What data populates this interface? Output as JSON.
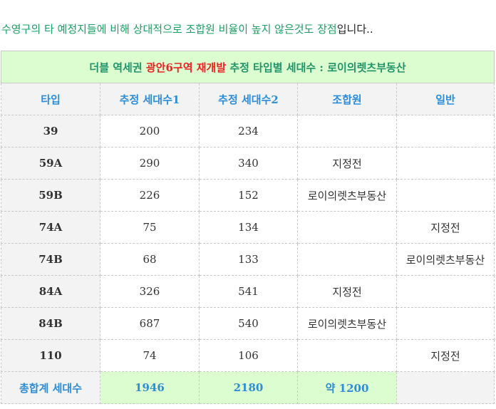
{
  "intro": {
    "green_text": "수영구의 타 예정지들에 비해 상대적으로 조합원 비율이 높지 않은것도 장점",
    "plain_text": "입니다.."
  },
  "table": {
    "title": {
      "part1": "더블 역세권 ",
      "part2": "광안6구역 재개발",
      "part3": "  추정 타입별 세대수 : 로이의렛츠부동산"
    },
    "headers": [
      "타입",
      "추정 세대수1",
      "추정 세대수2",
      "조합원",
      "일반"
    ],
    "rows": [
      {
        "type": "39",
        "v1": "200",
        "v2": "234",
        "member": "",
        "general": ""
      },
      {
        "type": "59A",
        "v1": "290",
        "v2": "340",
        "member": "지정전",
        "general": ""
      },
      {
        "type": "59B",
        "v1": "226",
        "v2": "152",
        "member": "로이의렛츠부동산",
        "general": ""
      },
      {
        "type": "74A",
        "v1": "75",
        "v2": "134",
        "member": "",
        "general": "지정전"
      },
      {
        "type": "74B",
        "v1": "68",
        "v2": "133",
        "member": "",
        "general": "로이의렛츠부동산"
      },
      {
        "type": "84A",
        "v1": "326",
        "v2": "541",
        "member": "지정전",
        "general": ""
      },
      {
        "type": "84B",
        "v1": "687",
        "v2": "540",
        "member": "로이의렛츠부동산",
        "general": ""
      },
      {
        "type": "110",
        "v1": "74",
        "v2": "106",
        "member": "",
        "general": "지정전"
      }
    ],
    "total": {
      "label": "총합계 세대수",
      "v1": "1946",
      "v2": "2180",
      "member": "약 1200",
      "general": ""
    }
  }
}
